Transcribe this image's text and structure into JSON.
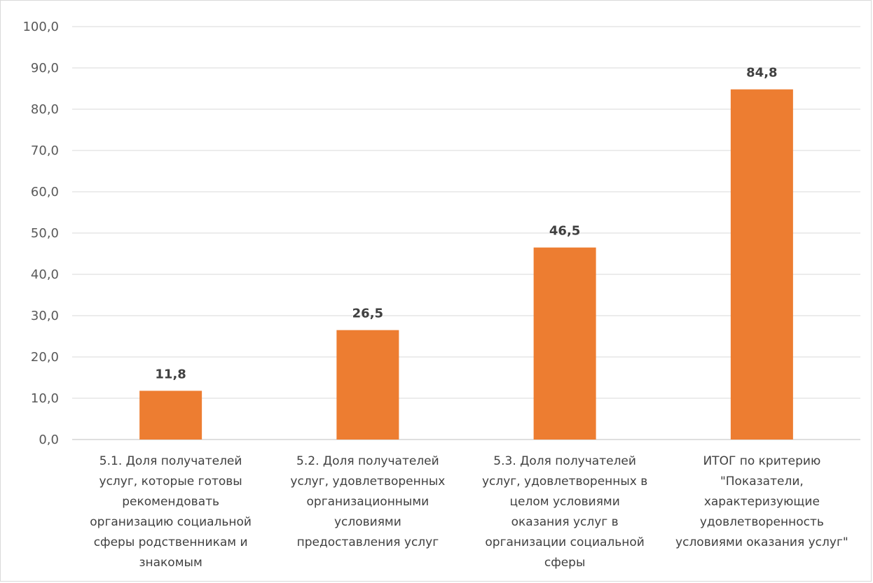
{
  "chart_data": {
    "type": "bar",
    "categories": [
      [
        "5.1. Доля получателей",
        "услуг, которые готовы",
        "рекомендовать",
        "организацию социальной",
        "сферы родственникам и",
        "знакомым"
      ],
      [
        "5.2. Доля получателей",
        "услуг, удовлетворенных",
        "организационными",
        "условиями",
        "предоставления услуг"
      ],
      [
        "5.3. Доля получателей",
        "услуг, удовлетворенных в",
        "целом условиями",
        "оказания услуг в",
        "организации социальной",
        "сферы"
      ],
      [
        "ИТОГ по критерию",
        "\"Показатели,",
        "характеризующие",
        "удовлетворенность",
        "условиями оказания услуг\""
      ]
    ],
    "values": [
      11.8,
      26.5,
      46.5,
      84.8
    ],
    "value_labels": [
      "11,8",
      "26,5",
      "46,5",
      "84,8"
    ],
    "y_ticks": [
      "0,0",
      "10,0",
      "20,0",
      "30,0",
      "40,0",
      "50,0",
      "60,0",
      "70,0",
      "80,0",
      "90,0",
      "100,0"
    ],
    "ylim": [
      0,
      100
    ],
    "grid": true,
    "colors": {
      "bar": "#ED7D31",
      "grid": "#d9d9d9",
      "axis": "#bfbfbf"
    }
  }
}
